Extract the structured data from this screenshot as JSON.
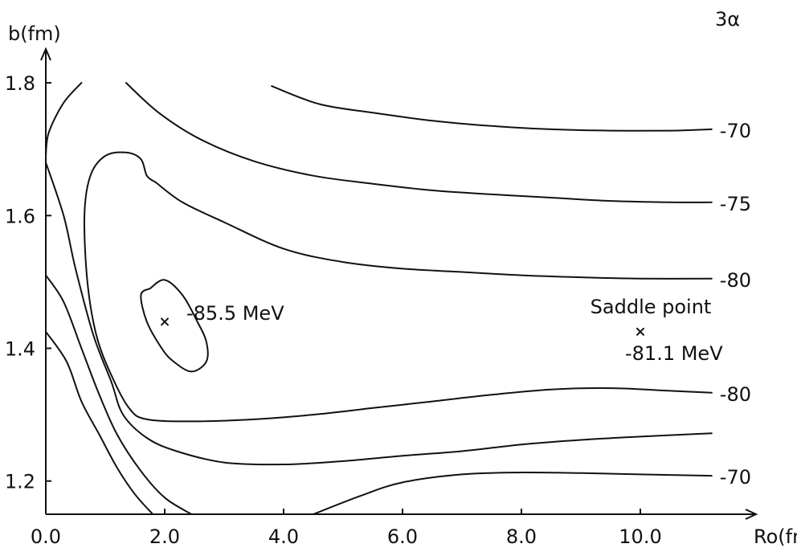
{
  "chart_data": {
    "type": "contour",
    "title": "3α",
    "xlabel": "Ro(fm)",
    "ylabel": "b(fm)",
    "xlim": [
      0,
      11.5
    ],
    "ylim": [
      1.15,
      1.88
    ],
    "xticks": [
      {
        "value": 0.0,
        "label": "0.0"
      },
      {
        "value": 2.0,
        "label": "2.0"
      },
      {
        "value": 4.0,
        "label": "4.0"
      },
      {
        "value": 6.0,
        "label": "6.0"
      },
      {
        "value": 8.0,
        "label": "8.0"
      },
      {
        "value": 10.0,
        "label": "10.0"
      }
    ],
    "yticks": [
      {
        "value": 1.2,
        "label": "1.2"
      },
      {
        "value": 1.4,
        "label": "1.4"
      },
      {
        "value": 1.6,
        "label": "1.6"
      },
      {
        "value": 1.8,
        "label": "1.8"
      }
    ],
    "contours": [
      {
        "level_label": "-70",
        "points": [
          [
            3.8,
            1.795
          ],
          [
            4.6,
            1.768
          ],
          [
            5.5,
            1.755
          ],
          [
            6.5,
            1.743
          ],
          [
            7.5,
            1.735
          ],
          [
            8.5,
            1.73
          ],
          [
            9.5,
            1.728
          ],
          [
            10.5,
            1.728
          ],
          [
            11.2,
            1.73
          ]
        ]
      },
      {
        "level_label": "",
        "points": [
          [
            0.6,
            1.8
          ],
          [
            0.3,
            1.77
          ],
          [
            0.05,
            1.725
          ],
          [
            0.0,
            1.69
          ]
        ]
      },
      {
        "level_label": "-75",
        "points": [
          [
            1.35,
            1.8
          ],
          [
            1.9,
            1.755
          ],
          [
            2.6,
            1.715
          ],
          [
            3.5,
            1.682
          ],
          [
            4.5,
            1.66
          ],
          [
            5.5,
            1.648
          ],
          [
            6.5,
            1.638
          ],
          [
            7.5,
            1.632
          ],
          [
            8.5,
            1.627
          ],
          [
            9.5,
            1.622
          ],
          [
            10.5,
            1.62
          ],
          [
            11.2,
            1.62
          ]
        ]
      },
      {
        "level_label": "-80",
        "points": [
          [
            1.85,
            1.65
          ],
          [
            1.7,
            1.66
          ],
          [
            1.6,
            1.685
          ],
          [
            1.35,
            1.695
          ],
          [
            1.0,
            1.69
          ],
          [
            0.75,
            1.66
          ],
          [
            0.65,
            1.6
          ],
          [
            0.7,
            1.5
          ],
          [
            0.85,
            1.42
          ],
          [
            1.1,
            1.36
          ],
          [
            1.4,
            1.31
          ],
          [
            1.7,
            1.293
          ],
          [
            2.5,
            1.29
          ],
          [
            3.5,
            1.293
          ],
          [
            4.5,
            1.3
          ],
          [
            5.5,
            1.31
          ],
          [
            6.5,
            1.32
          ],
          [
            7.5,
            1.33
          ],
          [
            8.5,
            1.338
          ],
          [
            9.5,
            1.34
          ],
          [
            10.5,
            1.336
          ],
          [
            11.2,
            1.333
          ]
        ]
      },
      {
        "level_label": "-80",
        "points": [
          [
            1.85,
            1.65
          ],
          [
            2.3,
            1.62
          ],
          [
            3.0,
            1.59
          ],
          [
            4.0,
            1.55
          ],
          [
            5.0,
            1.53
          ],
          [
            6.0,
            1.52
          ],
          [
            7.0,
            1.515
          ],
          [
            8.0,
            1.51
          ],
          [
            9.0,
            1.507
          ],
          [
            10.0,
            1.505
          ],
          [
            11.2,
            1.505
          ]
        ]
      },
      {
        "level_label": "",
        "points": [
          [
            0.0,
            1.68
          ],
          [
            0.3,
            1.6
          ],
          [
            0.5,
            1.52
          ],
          [
            0.8,
            1.42
          ],
          [
            1.1,
            1.35
          ],
          [
            1.3,
            1.3
          ],
          [
            1.7,
            1.265
          ],
          [
            2.2,
            1.245
          ],
          [
            3.0,
            1.228
          ],
          [
            4.0,
            1.225
          ],
          [
            5.0,
            1.23
          ],
          [
            6.0,
            1.238
          ],
          [
            7.0,
            1.245
          ],
          [
            8.0,
            1.255
          ],
          [
            9.0,
            1.262
          ],
          [
            10.0,
            1.267
          ],
          [
            11.2,
            1.272
          ]
        ]
      },
      {
        "level_label": "",
        "points": [
          [
            0.0,
            1.51
          ],
          [
            0.3,
            1.47
          ],
          [
            0.6,
            1.4
          ],
          [
            0.9,
            1.33
          ],
          [
            1.2,
            1.27
          ],
          [
            1.6,
            1.215
          ],
          [
            2.0,
            1.175
          ],
          [
            2.45,
            1.15
          ]
        ]
      },
      {
        "level_label": "",
        "points": [
          [
            0.0,
            1.425
          ],
          [
            0.35,
            1.38
          ],
          [
            0.6,
            1.32
          ],
          [
            0.9,
            1.27
          ],
          [
            1.2,
            1.22
          ],
          [
            1.5,
            1.18
          ],
          [
            1.8,
            1.15
          ]
        ]
      },
      {
        "level_label": "-70",
        "points": [
          [
            4.5,
            1.15
          ],
          [
            5.3,
            1.178
          ],
          [
            6.0,
            1.198
          ],
          [
            7.0,
            1.21
          ],
          [
            8.0,
            1.213
          ],
          [
            9.0,
            1.212
          ],
          [
            10.0,
            1.21
          ],
          [
            11.2,
            1.208
          ]
        ]
      }
    ],
    "minimum_contour": {
      "label": "-85.5 MeV",
      "points": [
        [
          1.75,
          1.49
        ],
        [
          2.0,
          1.503
        ],
        [
          2.3,
          1.48
        ],
        [
          2.55,
          1.44
        ],
        [
          2.7,
          1.41
        ],
        [
          2.7,
          1.38
        ],
        [
          2.45,
          1.365
        ],
        [
          2.15,
          1.38
        ],
        [
          1.95,
          1.4
        ],
        [
          1.7,
          1.44
        ],
        [
          1.6,
          1.48
        ],
        [
          1.75,
          1.49
        ]
      ]
    },
    "minimum_point": {
      "x": 2.0,
      "y": 1.44
    },
    "saddle_point": {
      "x": 10.0,
      "y": 1.425,
      "heading": "Saddle point",
      "label": "-81.1 MeV"
    }
  }
}
